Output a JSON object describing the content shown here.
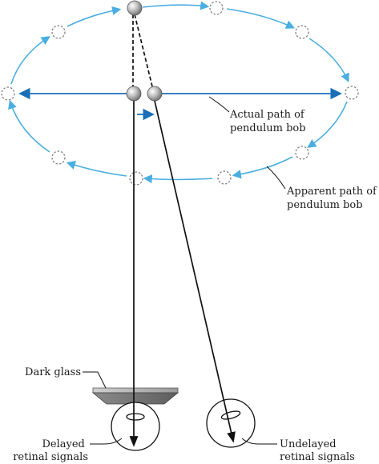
{
  "labels": {
    "actual_path_line1": "Actual path of",
    "actual_path_line2": "pendulum bob",
    "apparent_path_line1": "Apparent path of",
    "apparent_path_line2": "pendulum bob",
    "dark_glass": "Dark glass",
    "delayed_line1": "Delayed",
    "delayed_line2": "retinal signals",
    "undelayed_line1": "Undelayed",
    "undelayed_line2": "retinal signals"
  },
  "colors": {
    "path_arrow": "#4aaee0",
    "actual_path": "#1a6fb8",
    "bob": "#9a9a9a",
    "glass": "#a8a8a8",
    "line": "#111111"
  }
}
